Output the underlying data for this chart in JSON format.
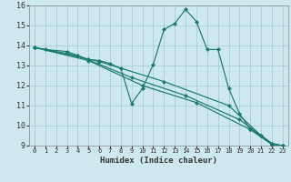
{
  "xlabel": "Humidex (Indice chaleur)",
  "bg_color": "#cde8ee",
  "grid_color": "#aacdd6",
  "line_color": "#1a7a6e",
  "xlim": [
    -0.5,
    23.5
  ],
  "ylim": [
    9,
    16
  ],
  "xticks": [
    0,
    1,
    2,
    3,
    4,
    5,
    6,
    7,
    8,
    9,
    10,
    11,
    12,
    13,
    14,
    15,
    16,
    17,
    18,
    19,
    20,
    21,
    22,
    23
  ],
  "yticks": [
    9,
    10,
    11,
    12,
    13,
    14,
    15,
    16
  ],
  "series": [
    [
      0,
      13.9
    ],
    [
      1,
      13.8
    ],
    [
      3,
      13.7
    ],
    [
      4,
      13.5
    ],
    [
      5,
      13.3
    ],
    [
      6,
      13.25
    ],
    [
      7,
      13.1
    ],
    [
      8,
      12.85
    ],
    [
      9,
      11.1
    ],
    [
      10,
      11.85
    ],
    [
      11,
      13.05
    ],
    [
      12,
      14.8
    ],
    [
      13,
      15.1
    ],
    [
      14,
      15.8
    ],
    [
      15,
      15.2
    ],
    [
      16,
      13.8
    ],
    [
      17,
      13.8
    ],
    [
      18,
      11.85
    ],
    [
      19,
      10.6
    ],
    [
      20,
      9.8
    ],
    [
      21,
      9.5
    ],
    [
      22,
      9.05
    ],
    [
      23,
      9.0
    ]
  ],
  "line2": [
    [
      0,
      13.9
    ],
    [
      4,
      13.5
    ],
    [
      9,
      12.4
    ],
    [
      14,
      11.5
    ],
    [
      19,
      10.3
    ],
    [
      22,
      9.1
    ],
    [
      23,
      9.0
    ]
  ],
  "line3": [
    [
      0,
      13.9
    ],
    [
      5,
      13.25
    ],
    [
      10,
      12.0
    ],
    [
      15,
      11.15
    ],
    [
      20,
      9.8
    ],
    [
      22,
      9.05
    ],
    [
      23,
      9.0
    ]
  ],
  "line4": [
    [
      0,
      13.9
    ],
    [
      6,
      13.2
    ],
    [
      12,
      12.2
    ],
    [
      18,
      11.0
    ],
    [
      21,
      9.5
    ],
    [
      22,
      9.1
    ],
    [
      23,
      9.0
    ]
  ]
}
